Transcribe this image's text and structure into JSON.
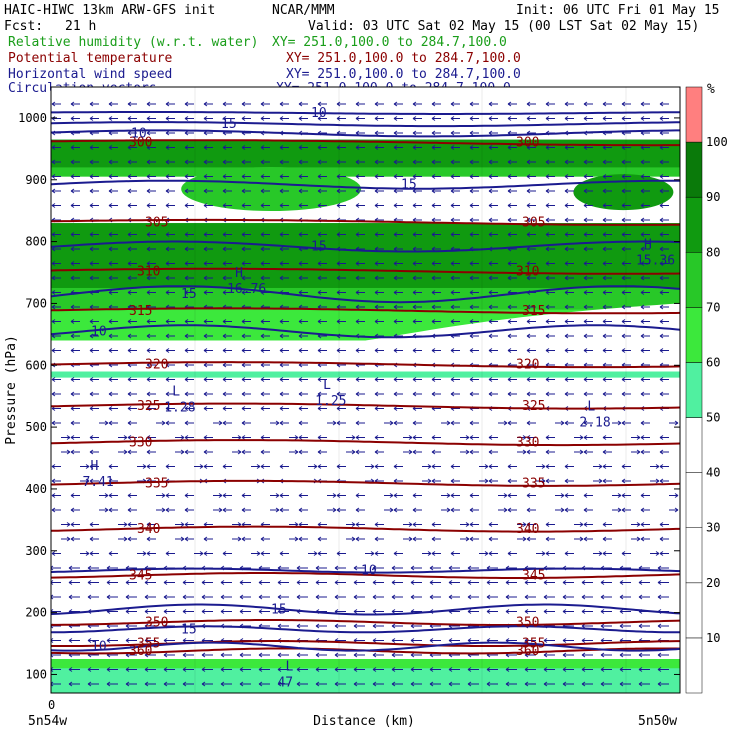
{
  "header": {
    "model": "HAIC-HIWC 13km ARW-GFS init",
    "org": "NCAR/MMM",
    "init": "Init: 06 UTC Fri 01 May 15",
    "fcst_label": "Fcst:",
    "fcst_value": "21 h",
    "valid": "Valid: 03 UTC Sat 02 May 15 (00 LST Sat 02 May 15)"
  },
  "fields": [
    {
      "name": "Relative humidity (w.r.t. water)",
      "xy": "XY= 251.0,100.0 to 284.7,100.0",
      "color": "#1a9e1a"
    },
    {
      "name": "Potential temperature",
      "xy": "XY= 251.0,100.0 to 284.7,100.0",
      "color": "#8b0000"
    },
    {
      "name": "Horizontal wind speed",
      "xy": "XY= 251.0,100.0 to 284.7,100.0",
      "color": "#1b1b8f"
    },
    {
      "name": "Circulation vectors",
      "xy": "XY= 251.0,100.0 to 284.7,100.0",
      "color": "#1b1b8f"
    }
  ],
  "colors": {
    "rh": [
      "#ffffff",
      "#50f0a0",
      "#3ce83c",
      "#28c828",
      "#109a10",
      "#ff7f7f"
    ],
    "theta": "#8b0000",
    "wind": "#1b1b8f",
    "vectors": "#1b1b8f"
  },
  "chart_data": {
    "type": "heatmap",
    "xlabel": "Distance (km)",
    "ylabel": "Pressure (hPa)",
    "x_start_label": "5n54w",
    "x_end_label": "5n50w",
    "x_tick_zero": "0",
    "y_range": [
      1050,
      70
    ],
    "y_ticks": [
      100,
      200,
      300,
      400,
      500,
      600,
      700,
      800,
      900,
      1000
    ],
    "colorbar": {
      "unit": "%",
      "levels": [
        0,
        10,
        20,
        30,
        40,
        50,
        60,
        70,
        80,
        90,
        100,
        110
      ],
      "labels": [
        "10",
        "20",
        "30",
        "40",
        "50",
        "60",
        "70",
        "80",
        "90",
        "100"
      ]
    },
    "theta_contours": [
      {
        "value": 360,
        "label": "360",
        "p": 138
      },
      {
        "value": 355,
        "label": "355",
        "p": 150
      },
      {
        "value": 350,
        "label": "350",
        "p": 184
      },
      {
        "value": 345,
        "label": "345",
        "p": 260
      },
      {
        "value": 340,
        "label": "340",
        "p": 335
      },
      {
        "value": 335,
        "label": "335",
        "p": 409
      },
      {
        "value": 330,
        "label": "330",
        "p": 475
      },
      {
        "value": 325,
        "label": "325",
        "p": 534
      },
      {
        "value": 320,
        "label": "320",
        "p": 601
      },
      {
        "value": 315,
        "label": "315",
        "p": 688
      },
      {
        "value": 310,
        "label": "310",
        "p": 752
      },
      {
        "value": 305,
        "label": "305",
        "p": 831
      },
      {
        "value": 300,
        "label": "300",
        "p": 960
      }
    ],
    "wind_labels": [
      "10",
      "15",
      "15",
      "10",
      "10",
      "15",
      "15",
      "15",
      "10",
      "15",
      "10"
    ],
    "extrema": [
      {
        "type": "H",
        "value": "7.41",
        "x_frac": 0.1,
        "p": 424
      },
      {
        "type": "L",
        "value": "1.28",
        "x_frac": 0.35,
        "p": 545
      },
      {
        "type": "L",
        "value": "1.25",
        "x_frac": 0.85,
        "p": 555
      },
      {
        "type": "L",
        "value": "2.18",
        "x_frac": 0.95,
        "p": 520
      },
      {
        "type": "H",
        "value": "16.76",
        "x_frac": 0.6,
        "p": 736
      },
      {
        "type": "H",
        "value": "15.36",
        "x_frac": 0.97,
        "p": 782
      },
      {
        "type": "L",
        "value": "47",
        "x_frac": 0.72,
        "p": 100
      }
    ]
  }
}
